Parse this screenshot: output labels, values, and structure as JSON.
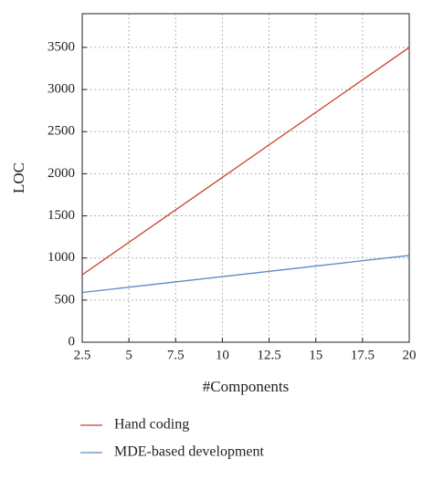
{
  "chart_data": {
    "type": "line",
    "x_label": "#Components",
    "y_label": "LOC",
    "x": [
      2.5,
      20
    ],
    "series": [
      {
        "name": "Hand coding",
        "color": "#c8402a",
        "values": [
          800,
          3500
        ]
      },
      {
        "name": "MDE-based development",
        "color": "#5b8ac6",
        "values": [
          590,
          1030
        ]
      }
    ],
    "xlim": [
      2.5,
      20
    ],
    "xticks": [
      2.5,
      5,
      7.5,
      10,
      12.5,
      15,
      17.5,
      20
    ],
    "ylim": [
      0,
      3900
    ],
    "yticks": [
      0,
      500,
      1000,
      1500,
      2000,
      2500,
      3000,
      3500
    ],
    "grid": true,
    "legend": "bottom"
  }
}
